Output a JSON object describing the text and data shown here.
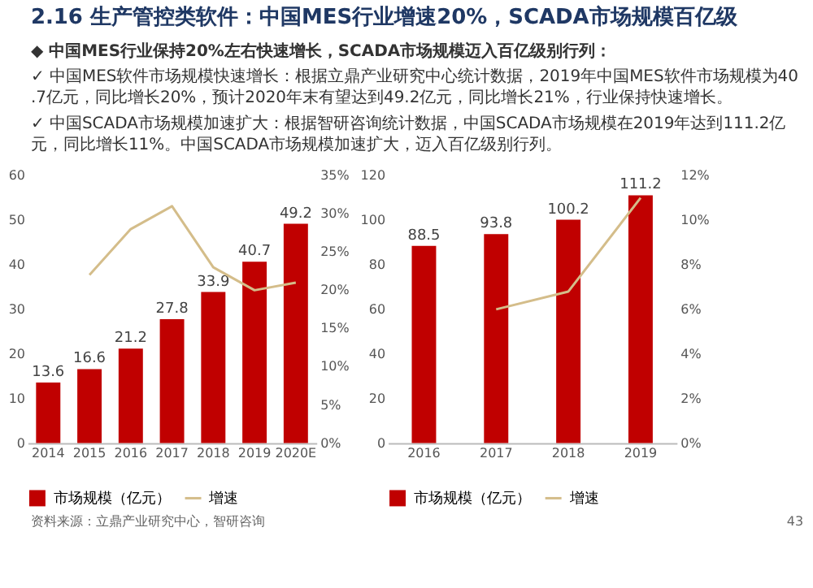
{
  "chart_data": [
    {
      "type": "bar",
      "categories": [
        "2014",
        "2015",
        "2016",
        "2017",
        "2018",
        "2019",
        "2020E"
      ],
      "series": [
        {
          "name": "市场规模（亿元）",
          "color": "#c00000",
          "values": [
            13.6,
            16.6,
            21.2,
            27.8,
            33.9,
            40.7,
            49.2
          ],
          "value_labels": [
            "13.6",
            "16.6",
            "21.2",
            "27.8",
            "33.9",
            "40.7",
            "49.2"
          ]
        },
        {
          "name": "增速",
          "type": "line",
          "axis": "y2",
          "color": "#d4bd8a",
          "values": [
            null,
            22,
            28,
            31,
            23,
            20,
            21
          ]
        }
      ],
      "ylim": [
        0,
        60
      ],
      "yticks": [
        0,
        10,
        20,
        30,
        40,
        50,
        60
      ],
      "y2lim": [
        0,
        35
      ],
      "y2ticks": [
        {
          "value": 0,
          "label": "0%"
        },
        {
          "value": 5,
          "label": "5%"
        },
        {
          "value": 10,
          "label": "10%"
        },
        {
          "value": 15,
          "label": "15%"
        },
        {
          "value": 20,
          "label": "20%"
        },
        {
          "value": 25,
          "label": "25%"
        },
        {
          "value": 30,
          "label": "30%"
        },
        {
          "value": 35,
          "label": "35%"
        }
      ],
      "grid": false,
      "legend": "bottom",
      "annotations": [
        "2.16 生产管控类软件：中国MES行业增速20%，SCADA市场规模百亿级",
        "◆ 中国MES行业保持20%左右快速增长，SCADA市场规模迈入百亿级别行列：",
        "✓ 中国MES软件市场规模快速增长：根据立鼎产业研究中心统计数据，2019年中国MES软件市场规模为40.7亿元，同比增长20%，预计2020年末有望达到49.2亿元，同比增长21%，行业保持快速增长。",
        "✓ 中国SCADA市场规模加速扩大：根据智研咨询统计数据，中国SCADA市场规模在2019年达到111.2亿元，同比增长11%。中国SCADA市场规模加速扩大，迈入百亿级别行列。",
        "资料来源：立鼎产业研究中心，智研咨询"
      ]
    },
    {
      "type": "bar",
      "categories": [
        "2016",
        "2017",
        "2018",
        "2019"
      ],
      "series": [
        {
          "name": "市场规模（亿元）",
          "color": "#c00000",
          "values": [
            88.5,
            93.8,
            100.2,
            111.2
          ],
          "value_labels": [
            "88.5",
            "93.8",
            "100.2",
            "111.2"
          ]
        },
        {
          "name": "增速",
          "type": "line",
          "axis": "y2",
          "color": "#d4bd8a",
          "values": [
            null,
            6,
            6.8,
            11
          ]
        }
      ],
      "ylim": [
        0,
        120
      ],
      "yticks": [
        0,
        20,
        40,
        60,
        80,
        100,
        120
      ],
      "y2lim": [
        0,
        12
      ],
      "y2ticks": [
        {
          "value": 0,
          "label": "0%"
        },
        {
          "value": 2,
          "label": "2%"
        },
        {
          "value": 4,
          "label": "4%"
        },
        {
          "value": 6,
          "label": "6%"
        },
        {
          "value": 8,
          "label": "8%"
        },
        {
          "value": 10,
          "label": "10%"
        },
        {
          "value": 12,
          "label": "12%"
        }
      ],
      "grid": false,
      "legend": "bottom",
      "annotations": [
        "43"
      ]
    }
  ]
}
